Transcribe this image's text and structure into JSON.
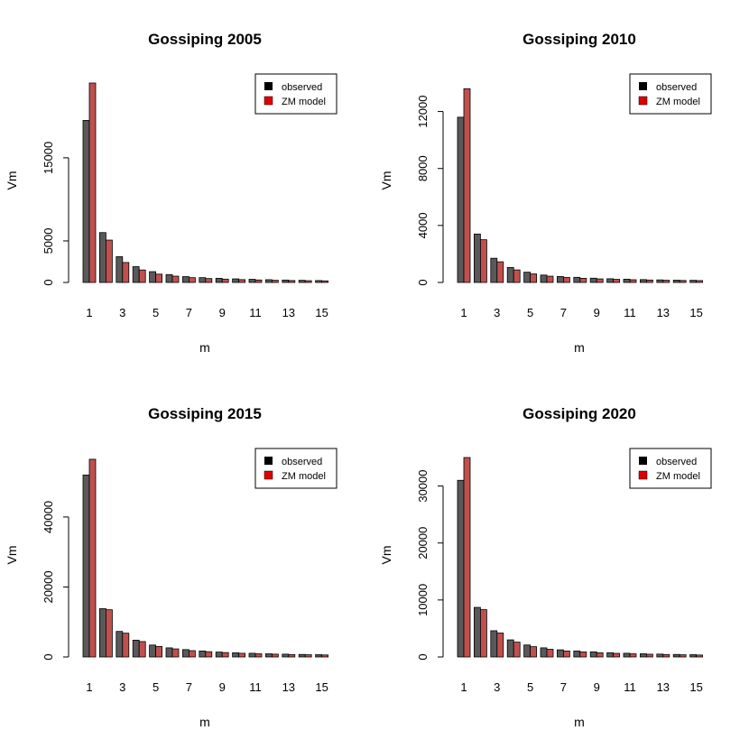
{
  "chart_data": [
    {
      "type": "bar",
      "title": "Gossiping 2005",
      "xlabel": "m",
      "ylabel": "Vm",
      "categories": [
        1,
        2,
        3,
        4,
        5,
        6,
        7,
        8,
        9,
        10,
        11,
        12,
        13,
        14,
        15
      ],
      "x_tick_labels": [
        "1",
        "3",
        "5",
        "7",
        "9",
        "11",
        "13",
        "15"
      ],
      "y_ticks": [
        0,
        5000,
        15000
      ],
      "y_tick_labels": [
        "0",
        "5000",
        "15000"
      ],
      "ylim": [
        0,
        24000
      ],
      "legend": {
        "placement": "top-right",
        "entries": [
          "observed",
          "ZM model"
        ]
      },
      "series": [
        {
          "name": "observed",
          "color": "#595959",
          "values": [
            19500,
            6000,
            3100,
            1900,
            1300,
            950,
            700,
            580,
            500,
            430,
            380,
            330,
            290,
            260,
            230
          ]
        },
        {
          "name": "ZM model",
          "color": "#c0504d",
          "values": [
            24000,
            5100,
            2400,
            1500,
            1000,
            760,
            580,
            470,
            400,
            340,
            300,
            260,
            230,
            210,
            190
          ]
        }
      ]
    },
    {
      "type": "bar",
      "title": "Gossiping 2010",
      "xlabel": "m",
      "ylabel": "Vm",
      "categories": [
        1,
        2,
        3,
        4,
        5,
        6,
        7,
        8,
        9,
        10,
        11,
        12,
        13,
        14,
        15
      ],
      "x_tick_labels": [
        "1",
        "3",
        "5",
        "7",
        "9",
        "11",
        "13",
        "15"
      ],
      "y_ticks": [
        0,
        4000,
        8000,
        12000
      ],
      "y_tick_labels": [
        "0",
        "4000",
        "8000",
        "12000"
      ],
      "ylim": [
        0,
        14000
      ],
      "legend": {
        "placement": "top-right",
        "entries": [
          "observed",
          "ZM model"
        ]
      },
      "series": [
        {
          "name": "observed",
          "color": "#595959",
          "values": [
            11600,
            3400,
            1700,
            1050,
            720,
            520,
            420,
            360,
            300,
            260,
            230,
            200,
            180,
            160,
            150
          ]
        },
        {
          "name": "ZM model",
          "color": "#c0504d",
          "values": [
            13600,
            3000,
            1450,
            880,
            600,
            440,
            350,
            290,
            250,
            220,
            190,
            170,
            155,
            140,
            130
          ]
        }
      ]
    },
    {
      "type": "bar",
      "title": "Gossiping 2015",
      "xlabel": "m",
      "ylabel": "Vm",
      "categories": [
        1,
        2,
        3,
        4,
        5,
        6,
        7,
        8,
        9,
        10,
        11,
        12,
        13,
        14,
        15
      ],
      "x_tick_labels": [
        "1",
        "3",
        "5",
        "7",
        "9",
        "11",
        "13",
        "15"
      ],
      "y_ticks": [
        0,
        20000,
        40000
      ],
      "y_tick_labels": [
        "0",
        "20000",
        "40000"
      ],
      "ylim": [
        0,
        57000
      ],
      "legend": {
        "placement": "top-right",
        "entries": [
          "observed",
          "ZM model"
        ]
      },
      "series": [
        {
          "name": "observed",
          "color": "#595959",
          "values": [
            52000,
            13800,
            7300,
            4800,
            3400,
            2600,
            2100,
            1700,
            1400,
            1200,
            1050,
            900,
            800,
            720,
            650
          ]
        },
        {
          "name": "ZM model",
          "color": "#c0504d",
          "values": [
            56500,
            13500,
            6800,
            4400,
            3000,
            2300,
            1800,
            1500,
            1250,
            1050,
            900,
            800,
            700,
            630,
            570
          ]
        }
      ]
    },
    {
      "type": "bar",
      "title": "Gossiping 2020",
      "xlabel": "m",
      "ylabel": "Vm",
      "categories": [
        1,
        2,
        3,
        4,
        5,
        6,
        7,
        8,
        9,
        10,
        11,
        12,
        13,
        14,
        15
      ],
      "x_tick_labels": [
        "1",
        "3",
        "5",
        "7",
        "9",
        "11",
        "13",
        "15"
      ],
      "y_ticks": [
        0,
        10000,
        20000,
        30000
      ],
      "y_tick_labels": [
        "0",
        "10000",
        "20000",
        "30000"
      ],
      "ylim": [
        0,
        35000
      ],
      "legend": {
        "placement": "top-right",
        "entries": [
          "observed",
          "ZM model"
        ]
      },
      "series": [
        {
          "name": "observed",
          "color": "#595959",
          "values": [
            31000,
            8700,
            4600,
            3000,
            2100,
            1600,
            1250,
            1050,
            900,
            750,
            650,
            560,
            500,
            440,
            400
          ]
        },
        {
          "name": "ZM model",
          "color": "#c0504d",
          "values": [
            35000,
            8300,
            4200,
            2600,
            1800,
            1350,
            1050,
            880,
            740,
            630,
            550,
            480,
            430,
            380,
            340
          ]
        }
      ]
    }
  ]
}
